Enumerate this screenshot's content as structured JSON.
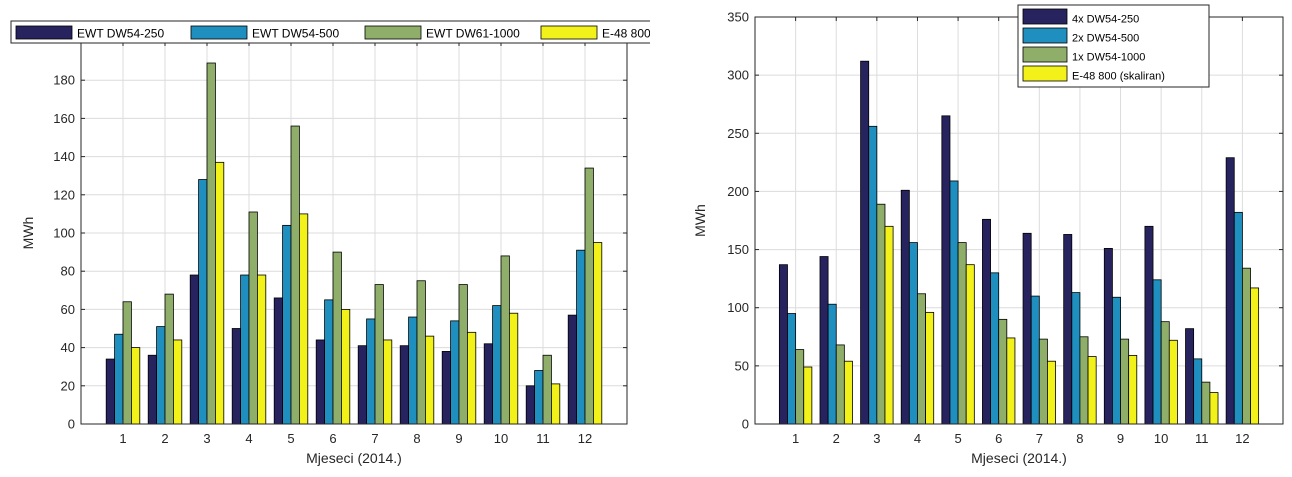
{
  "colors": [
    "#27235e",
    "#1f8fbf",
    "#8fae6a",
    "#f2f21a"
  ],
  "chart_data": [
    {
      "type": "bar",
      "categories": [
        "1",
        "2",
        "3",
        "4",
        "5",
        "6",
        "7",
        "8",
        "9",
        "10",
        "11",
        "12"
      ],
      "series": [
        {
          "name": "EWT DW54-250",
          "values": [
            34,
            36,
            78,
            50,
            66,
            44,
            41,
            41,
            38,
            42,
            20,
            57
          ]
        },
        {
          "name": "EWT DW54-500",
          "values": [
            47,
            51,
            128,
            78,
            104,
            65,
            55,
            56,
            54,
            62,
            28,
            91
          ]
        },
        {
          "name": "EWT DW61-1000",
          "values": [
            64,
            68,
            189,
            111,
            156,
            90,
            73,
            75,
            73,
            88,
            36,
            134
          ]
        },
        {
          "name": "E-48 800",
          "values": [
            40,
            44,
            137,
            78,
            110,
            60,
            44,
            46,
            48,
            58,
            21,
            95
          ]
        }
      ],
      "xlabel": "Mjeseci (2014.)",
      "ylabel": "MWh",
      "ylim": [
        0,
        200
      ],
      "yticks": [
        0,
        20,
        40,
        60,
        80,
        100,
        120,
        140,
        160,
        180
      ],
      "grid": true,
      "legend_position": "top-horizontal"
    },
    {
      "type": "bar",
      "categories": [
        "1",
        "2",
        "3",
        "4",
        "5",
        "6",
        "7",
        "8",
        "9",
        "10",
        "11",
        "12"
      ],
      "series": [
        {
          "name": "4x DW54-250",
          "values": [
            137,
            144,
            312,
            201,
            265,
            176,
            164,
            163,
            151,
            170,
            82,
            229
          ]
        },
        {
          "name": "2x DW54-500",
          "values": [
            95,
            103,
            256,
            156,
            209,
            130,
            110,
            113,
            109,
            124,
            56,
            182
          ]
        },
        {
          "name": "1x DW54-1000",
          "values": [
            64,
            68,
            189,
            112,
            156,
            90,
            73,
            75,
            73,
            88,
            36,
            134
          ]
        },
        {
          "name": "E-48 800 (skaliran)",
          "values": [
            49,
            54,
            170,
            96,
            137,
            74,
            54,
            58,
            59,
            72,
            27,
            117
          ]
        }
      ],
      "xlabel": "Mjeseci (2014.)",
      "ylabel": "MWh",
      "ylim": [
        0,
        350
      ],
      "yticks": [
        0,
        50,
        100,
        150,
        200,
        250,
        300,
        350
      ],
      "grid": true,
      "legend_position": "top-right"
    }
  ]
}
